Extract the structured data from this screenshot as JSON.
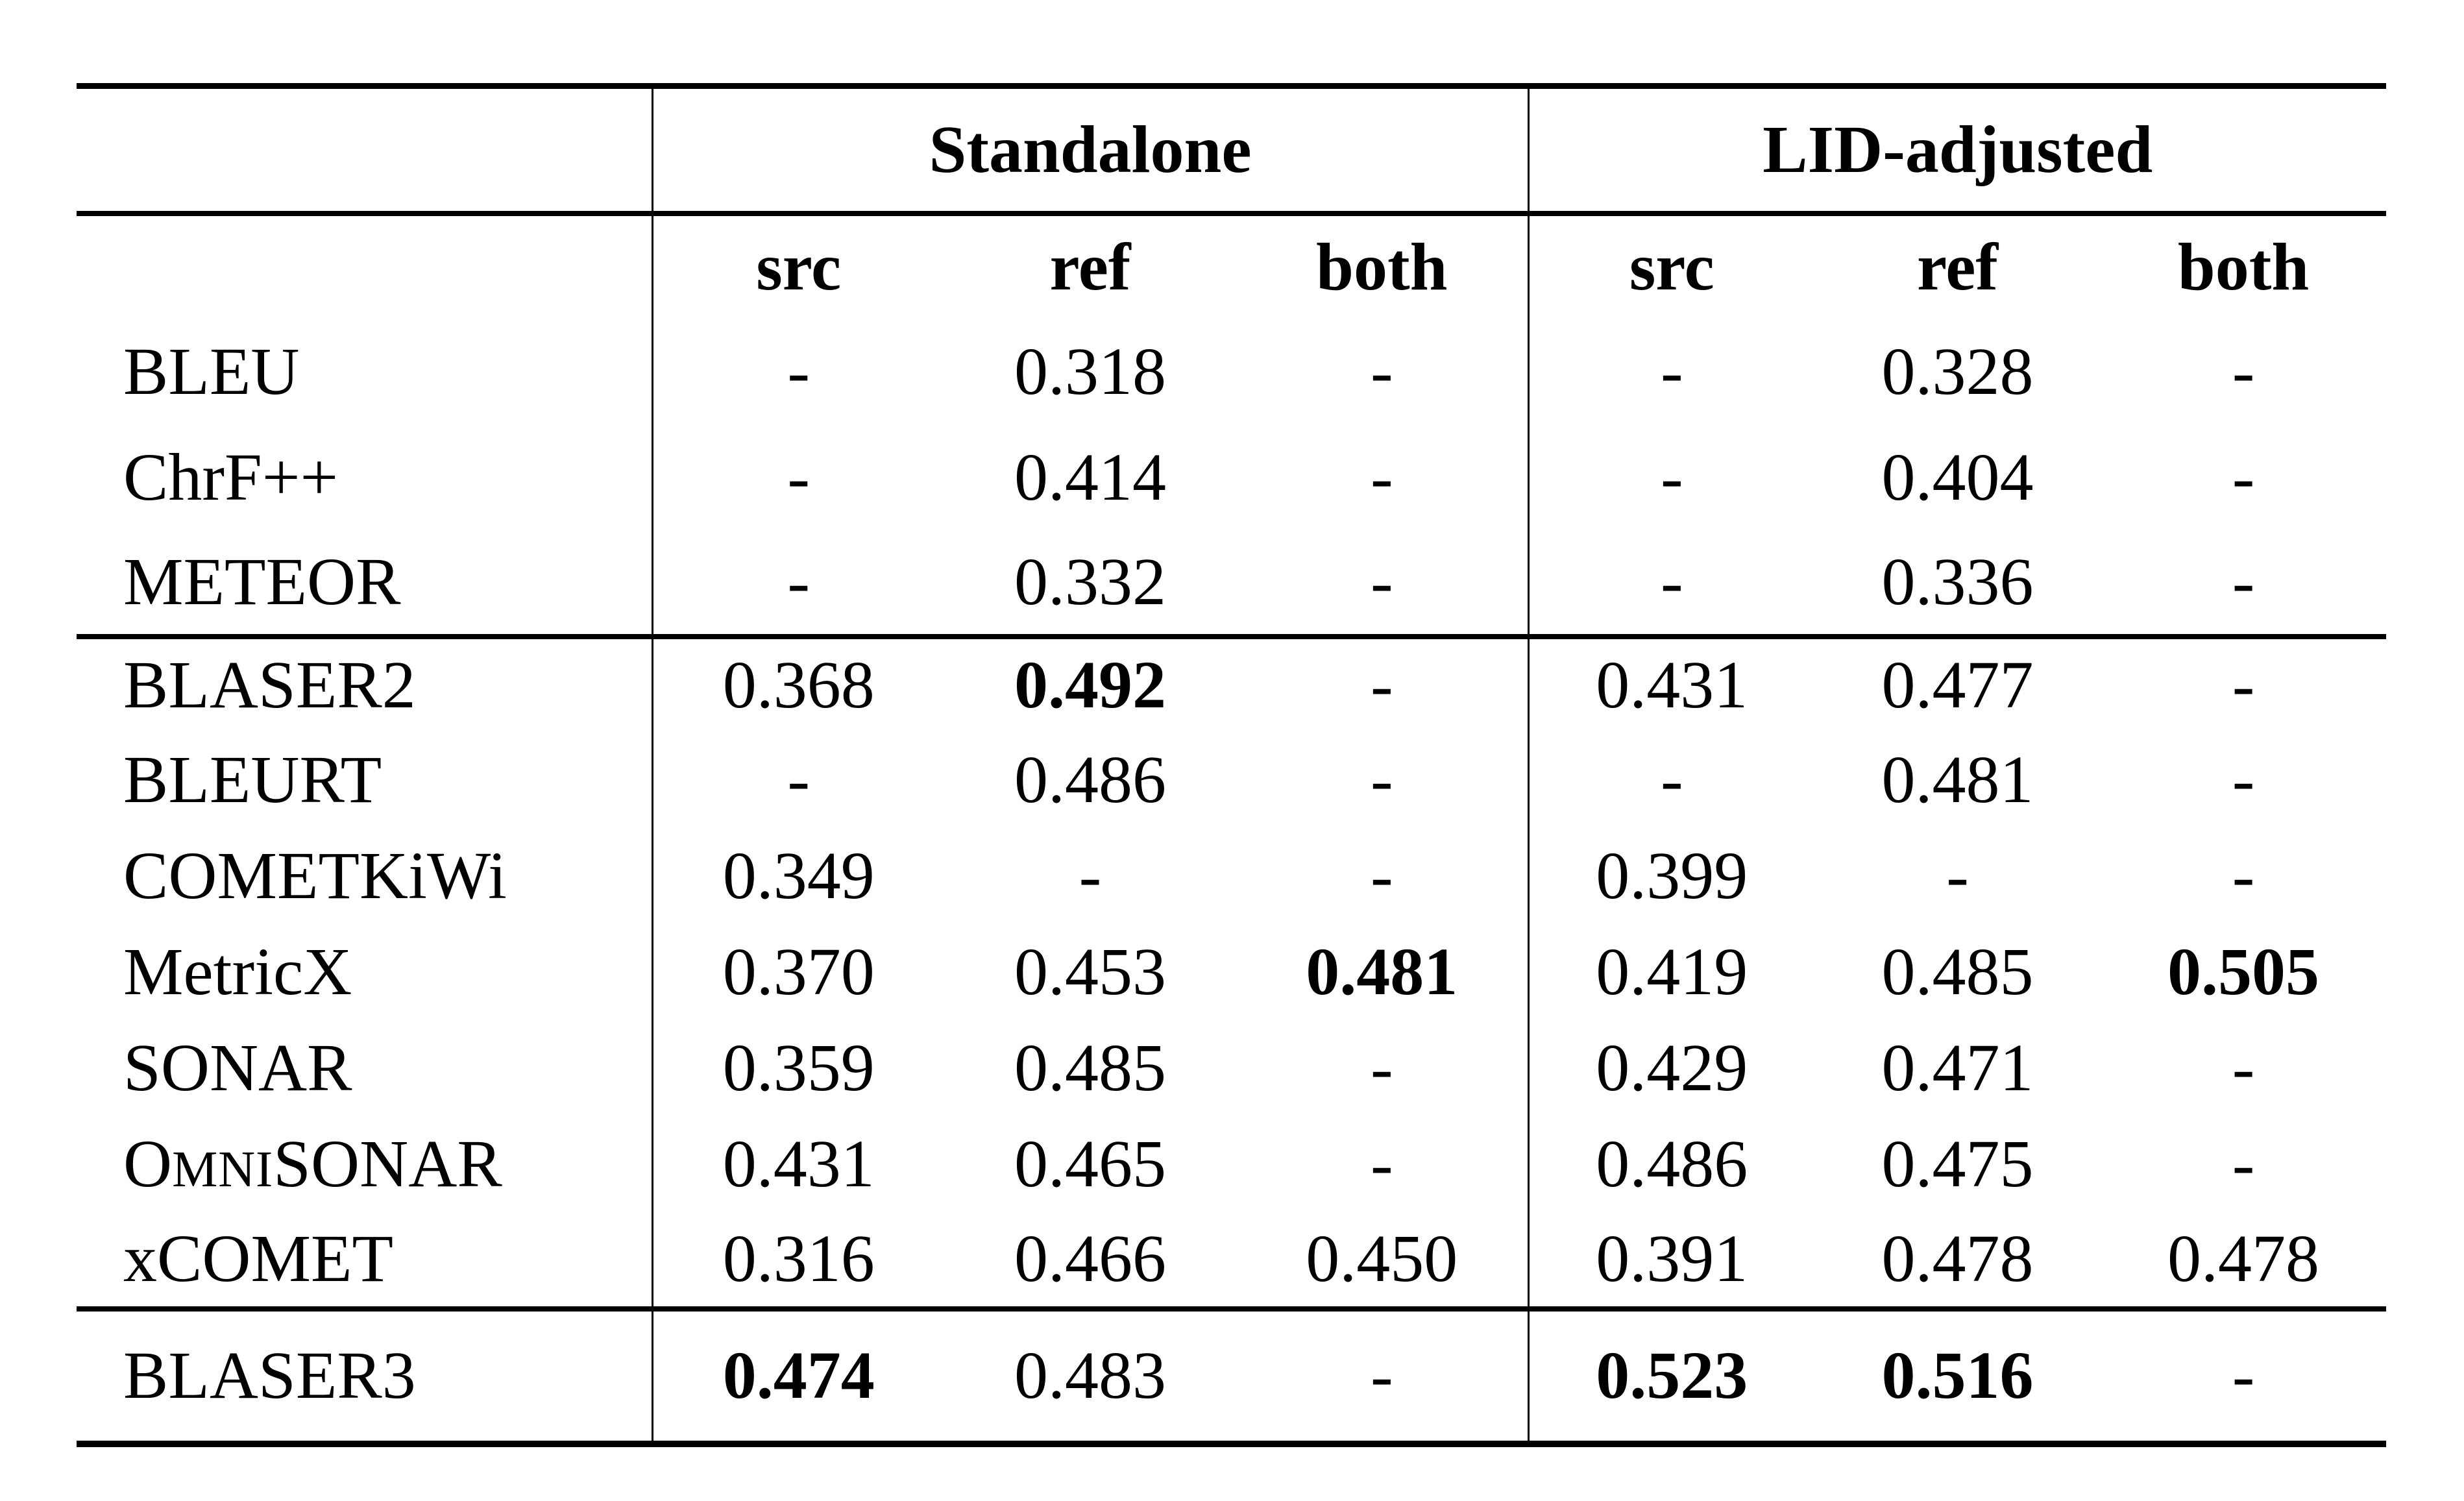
{
  "colors": {
    "background": "#ffffff",
    "text": "#000000",
    "rule": "#000000"
  },
  "table": {
    "group_headers": [
      {
        "label": "Standalone"
      },
      {
        "label": "LID-adjusted"
      }
    ],
    "col_headers": [
      "src",
      "ref",
      "both",
      "src",
      "ref",
      "both"
    ],
    "sections": [
      {
        "rows": [
          {
            "name": "BLEU",
            "cells": [
              {
                "v": "-"
              },
              {
                "v": "0.318"
              },
              {
                "v": "-"
              },
              {
                "v": "-"
              },
              {
                "v": "0.328"
              },
              {
                "v": "-"
              }
            ]
          },
          {
            "name": "ChrF++",
            "cells": [
              {
                "v": "-"
              },
              {
                "v": "0.414"
              },
              {
                "v": "-"
              },
              {
                "v": "-"
              },
              {
                "v": "0.404"
              },
              {
                "v": "-"
              }
            ]
          },
          {
            "name": "METEOR",
            "cells": [
              {
                "v": "-"
              },
              {
                "v": "0.332"
              },
              {
                "v": "-"
              },
              {
                "v": "-"
              },
              {
                "v": "0.336"
              },
              {
                "v": "-"
              }
            ]
          }
        ]
      },
      {
        "rows": [
          {
            "name": "BLASER2",
            "cells": [
              {
                "v": "0.368"
              },
              {
                "v": "0.492",
                "bold": true
              },
              {
                "v": "-"
              },
              {
                "v": "0.431"
              },
              {
                "v": "0.477"
              },
              {
                "v": "-"
              }
            ]
          },
          {
            "name": "BLEURT",
            "cells": [
              {
                "v": "-"
              },
              {
                "v": "0.486"
              },
              {
                "v": "-"
              },
              {
                "v": "-"
              },
              {
                "v": "0.481"
              },
              {
                "v": "-"
              }
            ]
          },
          {
            "name": "COMETKiWi",
            "cells": [
              {
                "v": "0.349"
              },
              {
                "v": "-"
              },
              {
                "v": "-"
              },
              {
                "v": "0.399"
              },
              {
                "v": "-"
              },
              {
                "v": "-"
              }
            ]
          },
          {
            "name": "MetricX",
            "cells": [
              {
                "v": "0.370"
              },
              {
                "v": "0.453"
              },
              {
                "v": "0.481",
                "bold": true
              },
              {
                "v": "0.419"
              },
              {
                "v": "0.485"
              },
              {
                "v": "0.505",
                "bold": true
              }
            ]
          },
          {
            "name": "SONAR",
            "cells": [
              {
                "v": "0.359"
              },
              {
                "v": "0.485"
              },
              {
                "v": "-"
              },
              {
                "v": "0.429"
              },
              {
                "v": "0.471"
              },
              {
                "v": "-"
              }
            ]
          },
          {
            "name": "OmniSONAR",
            "name_parts": [
              {
                "text": "O"
              },
              {
                "text": "MNI",
                "sc": true
              },
              {
                "text": "SONAR"
              }
            ],
            "cells": [
              {
                "v": "0.431"
              },
              {
                "v": "0.465"
              },
              {
                "v": "-"
              },
              {
                "v": "0.486"
              },
              {
                "v": "0.475"
              },
              {
                "v": "-"
              }
            ]
          },
          {
            "name": "xCOMET",
            "cells": [
              {
                "v": "0.316"
              },
              {
                "v": "0.466"
              },
              {
                "v": "0.450"
              },
              {
                "v": "0.391"
              },
              {
                "v": "0.478"
              },
              {
                "v": "0.478"
              }
            ]
          }
        ]
      },
      {
        "rows": [
          {
            "name": "BLASER3",
            "cells": [
              {
                "v": "0.474",
                "bold": true
              },
              {
                "v": "0.483"
              },
              {
                "v": "-"
              },
              {
                "v": "0.523",
                "bold": true
              },
              {
                "v": "0.516",
                "bold": true
              },
              {
                "v": "-"
              }
            ]
          }
        ]
      }
    ]
  }
}
